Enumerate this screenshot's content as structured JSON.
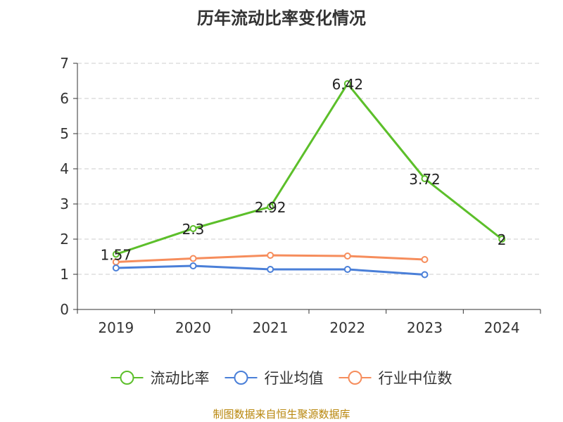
{
  "title": "历年流动比率变化情况",
  "source": "制图数据来自恒生聚源数据库",
  "chart_data": {
    "type": "line",
    "categories": [
      "2019",
      "2020",
      "2021",
      "2022",
      "2023",
      "2024"
    ],
    "ylim": [
      0,
      7
    ],
    "yticks": [
      0,
      1,
      2,
      3,
      4,
      5,
      6,
      7
    ],
    "grid": true,
    "legend_position": "bottom",
    "series": [
      {
        "name": "流动比率",
        "color": "#5cbf2a",
        "values": [
          1.57,
          2.3,
          2.92,
          6.42,
          3.72,
          2
        ],
        "show_labels": true
      },
      {
        "name": "行业均值",
        "color": "#4a7fd8",
        "values": [
          1.18,
          1.24,
          1.14,
          1.14,
          0.99,
          null
        ],
        "show_labels": false
      },
      {
        "name": "行业中位数",
        "color": "#f68d5c",
        "values": [
          1.35,
          1.45,
          1.54,
          1.52,
          1.42,
          null
        ],
        "show_labels": false
      }
    ]
  }
}
